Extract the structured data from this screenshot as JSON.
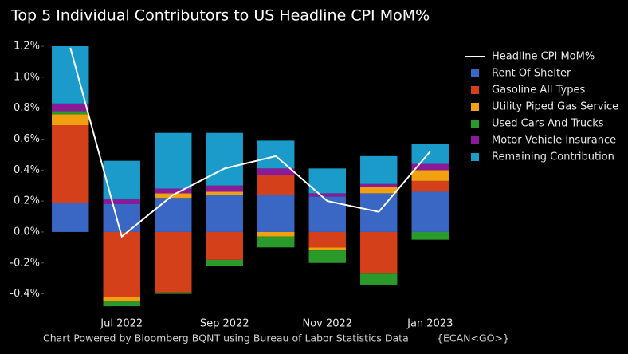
{
  "chart_data": {
    "type": "bar",
    "stacked": true,
    "title": "Top 5 Individual Contributors to US Headline CPI MoM%",
    "footer": "Chart Powered by Bloomberg BQNT using Bureau of Labor Statistics Data",
    "footer_code": "{ECAN<GO>}",
    "categories": [
      null,
      "Jul 2022",
      null,
      "Sep 2022",
      null,
      "Nov 2022",
      null,
      "Jan 2023"
    ],
    "ylim": [
      -0.5,
      1.25
    ],
    "yticks": [
      {
        "value": -0.4,
        "label": "-0.4%"
      },
      {
        "value": -0.2,
        "label": "-0.2%"
      },
      {
        "value": 0,
        "label": "0.0%"
      },
      {
        "value": 0.2,
        "label": "0.2%"
      },
      {
        "value": 0.4,
        "label": "0.4%"
      },
      {
        "value": 0.6,
        "label": "0.6%"
      },
      {
        "value": 0.8,
        "label": "0.8%"
      },
      {
        "value": 1.0,
        "label": "1.0%"
      },
      {
        "value": 1.2,
        "label": "1.2%"
      }
    ],
    "grid": false,
    "legend": "right",
    "series": [
      {
        "name": "Headline CPI MoM%",
        "type": "line",
        "color": "#ffffff",
        "values": [
          1.19,
          -0.03,
          0.24,
          0.41,
          0.49,
          0.2,
          0.13,
          0.52
        ]
      },
      {
        "name": "Rent Of Shelter",
        "type": "bar",
        "color": "#3a67c4",
        "values": [
          0.19,
          0.18,
          0.22,
          0.24,
          0.24,
          0.23,
          0.25,
          0.26
        ]
      },
      {
        "name": "Gasoline All Types",
        "type": "bar",
        "color": "#d4401a",
        "values": [
          0.5,
          -0.42,
          -0.39,
          -0.18,
          0.13,
          -0.1,
          -0.27,
          0.07
        ]
      },
      {
        "name": "Utility Piped Gas Service",
        "type": "bar",
        "color": "#f0a010",
        "values": [
          0.07,
          -0.03,
          0.03,
          0.02,
          -0.03,
          -0.02,
          0.04,
          0.07
        ]
      },
      {
        "name": "Used Cars And Trucks",
        "type": "bar",
        "color": "#2a9a2a",
        "values": [
          0.02,
          -0.03,
          -0.01,
          -0.04,
          -0.07,
          -0.08,
          -0.07,
          -0.05
        ]
      },
      {
        "name": "Motor Vehicle Insurance",
        "type": "bar",
        "color": "#8b1a9a",
        "values": [
          0.05,
          0.03,
          0.03,
          0.04,
          0.04,
          0.02,
          0.02,
          0.04
        ]
      },
      {
        "name": "Remaining Contribution",
        "type": "bar",
        "color": "#1b9bc9",
        "values": [
          0.37,
          0.25,
          0.36,
          0.34,
          0.18,
          0.16,
          0.18,
          0.13
        ]
      }
    ]
  }
}
